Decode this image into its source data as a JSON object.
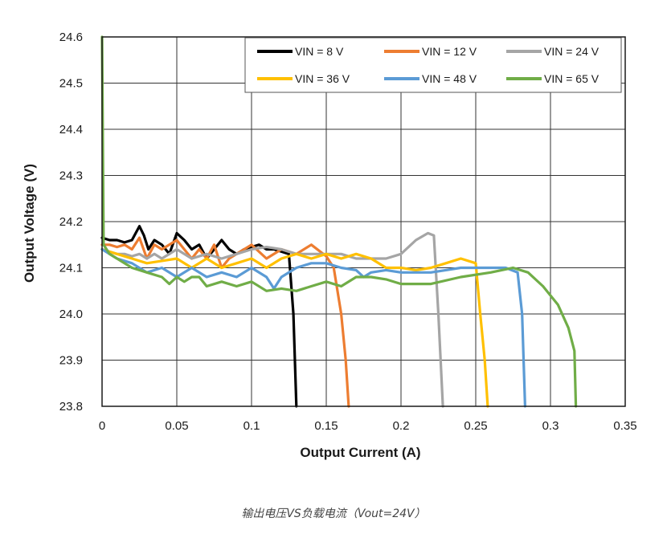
{
  "caption": "输出电压VS负载电流（Vout=24V）",
  "chart_data": {
    "type": "line",
    "xlabel": "Output Current (A)",
    "ylabel": "Output Voltage (V)",
    "xlim": [
      0,
      0.35
    ],
    "ylim": [
      23.8,
      24.6
    ],
    "xticks": [
      "0",
      "0.05",
      "0.1",
      "0.15",
      "0.2",
      "0.25",
      "0.3",
      "0.35"
    ],
    "yticks": [
      "23.8",
      "23.9",
      "24.0",
      "24.1",
      "24.2",
      "24.3",
      "24.4",
      "24.5",
      "24.6"
    ],
    "grid": true,
    "legend_position": "top-right",
    "series": [
      {
        "name": "VIN = 8 V",
        "color": "#000000",
        "points": [
          [
            0,
            24.165
          ],
          [
            0.005,
            24.16
          ],
          [
            0.01,
            24.16
          ],
          [
            0.015,
            24.155
          ],
          [
            0.02,
            24.16
          ],
          [
            0.025,
            24.19
          ],
          [
            0.028,
            24.17
          ],
          [
            0.031,
            24.14
          ],
          [
            0.035,
            24.16
          ],
          [
            0.04,
            24.15
          ],
          [
            0.045,
            24.13
          ],
          [
            0.05,
            24.175
          ],
          [
            0.055,
            24.16
          ],
          [
            0.06,
            24.14
          ],
          [
            0.065,
            24.15
          ],
          [
            0.07,
            24.12
          ],
          [
            0.075,
            24.14
          ],
          [
            0.08,
            24.16
          ],
          [
            0.085,
            24.14
          ],
          [
            0.09,
            24.13
          ],
          [
            0.095,
            24.14
          ],
          [
            0.1,
            24.145
          ],
          [
            0.105,
            24.15
          ],
          [
            0.11,
            24.14
          ],
          [
            0.115,
            24.14
          ],
          [
            0.12,
            24.135
          ],
          [
            0.125,
            24.13
          ],
          [
            0.128,
            24.0
          ],
          [
            0.13,
            23.8
          ]
        ]
      },
      {
        "name": "VIN = 12 V",
        "color": "#ED7D31",
        "points": [
          [
            0,
            24.15
          ],
          [
            0.005,
            24.15
          ],
          [
            0.01,
            24.145
          ],
          [
            0.015,
            24.15
          ],
          [
            0.02,
            24.14
          ],
          [
            0.025,
            24.165
          ],
          [
            0.03,
            24.12
          ],
          [
            0.035,
            24.15
          ],
          [
            0.04,
            24.14
          ],
          [
            0.045,
            24.15
          ],
          [
            0.05,
            24.16
          ],
          [
            0.055,
            24.14
          ],
          [
            0.06,
            24.12
          ],
          [
            0.065,
            24.14
          ],
          [
            0.07,
            24.12
          ],
          [
            0.075,
            24.15
          ],
          [
            0.08,
            24.1
          ],
          [
            0.085,
            24.12
          ],
          [
            0.09,
            24.13
          ],
          [
            0.1,
            24.15
          ],
          [
            0.11,
            24.12
          ],
          [
            0.12,
            24.14
          ],
          [
            0.13,
            24.13
          ],
          [
            0.14,
            24.15
          ],
          [
            0.15,
            24.125
          ],
          [
            0.155,
            24.1
          ],
          [
            0.16,
            24.0
          ],
          [
            0.163,
            23.9
          ],
          [
            0.165,
            23.8
          ]
        ]
      },
      {
        "name": "VIN = 24 V",
        "color": "#A5A5A5",
        "points": [
          [
            0,
            24.14
          ],
          [
            0.005,
            24.135
          ],
          [
            0.01,
            24.13
          ],
          [
            0.015,
            24.13
          ],
          [
            0.02,
            24.125
          ],
          [
            0.025,
            24.13
          ],
          [
            0.03,
            24.12
          ],
          [
            0.035,
            24.13
          ],
          [
            0.04,
            24.12
          ],
          [
            0.05,
            24.14
          ],
          [
            0.06,
            24.12
          ],
          [
            0.07,
            24.13
          ],
          [
            0.08,
            24.12
          ],
          [
            0.09,
            24.13
          ],
          [
            0.1,
            24.14
          ],
          [
            0.11,
            24.145
          ],
          [
            0.12,
            24.14
          ],
          [
            0.13,
            24.13
          ],
          [
            0.14,
            24.13
          ],
          [
            0.15,
            24.13
          ],
          [
            0.16,
            24.13
          ],
          [
            0.17,
            24.12
          ],
          [
            0.18,
            24.12
          ],
          [
            0.19,
            24.12
          ],
          [
            0.2,
            24.13
          ],
          [
            0.21,
            24.16
          ],
          [
            0.218,
            24.175
          ],
          [
            0.222,
            24.17
          ],
          [
            0.225,
            24.0
          ],
          [
            0.228,
            23.8
          ]
        ]
      },
      {
        "name": "VIN = 36 V",
        "color": "#FFC000",
        "points": [
          [
            0,
            24.14
          ],
          [
            0.01,
            24.13
          ],
          [
            0.02,
            24.12
          ],
          [
            0.03,
            24.11
          ],
          [
            0.04,
            24.115
          ],
          [
            0.05,
            24.12
          ],
          [
            0.06,
            24.1
          ],
          [
            0.07,
            24.12
          ],
          [
            0.08,
            24.1
          ],
          [
            0.09,
            24.11
          ],
          [
            0.1,
            24.12
          ],
          [
            0.11,
            24.1
          ],
          [
            0.12,
            24.12
          ],
          [
            0.13,
            24.13
          ],
          [
            0.14,
            24.12
          ],
          [
            0.15,
            24.13
          ],
          [
            0.16,
            24.12
          ],
          [
            0.17,
            24.13
          ],
          [
            0.18,
            24.12
          ],
          [
            0.19,
            24.1
          ],
          [
            0.2,
            24.1
          ],
          [
            0.21,
            24.095
          ],
          [
            0.22,
            24.1
          ],
          [
            0.23,
            24.11
          ],
          [
            0.24,
            24.12
          ],
          [
            0.25,
            24.11
          ],
          [
            0.253,
            24.0
          ],
          [
            0.256,
            23.9
          ],
          [
            0.258,
            23.8
          ]
        ]
      },
      {
        "name": "VIN = 48 V",
        "color": "#5B9BD5",
        "points": [
          [
            0,
            24.14
          ],
          [
            0.01,
            24.12
          ],
          [
            0.02,
            24.11
          ],
          [
            0.03,
            24.09
          ],
          [
            0.04,
            24.1
          ],
          [
            0.05,
            24.08
          ],
          [
            0.06,
            24.1
          ],
          [
            0.07,
            24.08
          ],
          [
            0.08,
            24.09
          ],
          [
            0.09,
            24.08
          ],
          [
            0.1,
            24.1
          ],
          [
            0.11,
            24.08
          ],
          [
            0.115,
            24.055
          ],
          [
            0.12,
            24.08
          ],
          [
            0.13,
            24.1
          ],
          [
            0.14,
            24.11
          ],
          [
            0.15,
            24.11
          ],
          [
            0.16,
            24.1
          ],
          [
            0.17,
            24.095
          ],
          [
            0.175,
            24.08
          ],
          [
            0.18,
            24.09
          ],
          [
            0.19,
            24.095
          ],
          [
            0.2,
            24.09
          ],
          [
            0.21,
            24.09
          ],
          [
            0.22,
            24.09
          ],
          [
            0.23,
            24.095
          ],
          [
            0.24,
            24.1
          ],
          [
            0.25,
            24.1
          ],
          [
            0.26,
            24.1
          ],
          [
            0.27,
            24.1
          ],
          [
            0.278,
            24.09
          ],
          [
            0.281,
            24.0
          ],
          [
            0.283,
            23.8
          ]
        ]
      },
      {
        "name": "VIN = 65 V",
        "color": "#70AD47",
        "points": [
          [
            0,
            24.6
          ],
          [
            0.001,
            24.15
          ],
          [
            0.005,
            24.13
          ],
          [
            0.01,
            24.12
          ],
          [
            0.02,
            24.1
          ],
          [
            0.03,
            24.09
          ],
          [
            0.04,
            24.08
          ],
          [
            0.045,
            24.065
          ],
          [
            0.05,
            24.08
          ],
          [
            0.055,
            24.07
          ],
          [
            0.06,
            24.08
          ],
          [
            0.065,
            24.08
          ],
          [
            0.07,
            24.06
          ],
          [
            0.08,
            24.07
          ],
          [
            0.09,
            24.06
          ],
          [
            0.1,
            24.07
          ],
          [
            0.11,
            24.05
          ],
          [
            0.12,
            24.055
          ],
          [
            0.13,
            24.05
          ],
          [
            0.14,
            24.06
          ],
          [
            0.15,
            24.07
          ],
          [
            0.16,
            24.06
          ],
          [
            0.17,
            24.08
          ],
          [
            0.18,
            24.08
          ],
          [
            0.19,
            24.075
          ],
          [
            0.2,
            24.065
          ],
          [
            0.22,
            24.065
          ],
          [
            0.24,
            24.08
          ],
          [
            0.26,
            24.09
          ],
          [
            0.275,
            24.1
          ],
          [
            0.285,
            24.09
          ],
          [
            0.295,
            24.06
          ],
          [
            0.305,
            24.02
          ],
          [
            0.312,
            23.97
          ],
          [
            0.316,
            23.92
          ],
          [
            0.317,
            23.8
          ]
        ]
      }
    ]
  }
}
